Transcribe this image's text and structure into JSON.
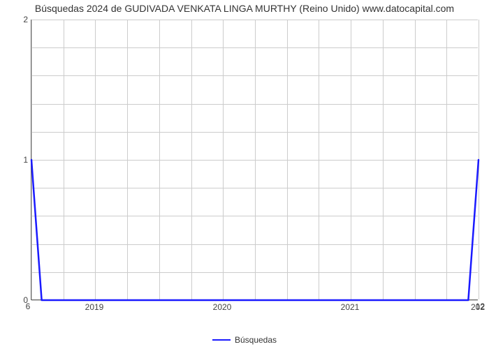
{
  "chart": {
    "type": "line",
    "title": "Búsquedas 2024 de GUDIVADA VENKATA LINGA MURTHY (Reino Unido) www.datocapital.com",
    "title_fontsize": 14,
    "title_color": "#333333",
    "background_color": "#ffffff",
    "plot_border_color": "#666666",
    "grid_color": "#cccccc",
    "y": {
      "min": 0,
      "max": 2,
      "major_ticks": [
        0,
        1,
        2
      ],
      "minor_divisions_between_majors": 4,
      "label_fontsize": 12,
      "label_color": "#444444"
    },
    "x": {
      "min": 2018.5,
      "max": 2022.0,
      "major_ticks": [
        2019,
        2020,
        2021
      ],
      "minor_step": 0.25,
      "label_fontsize": 12,
      "label_color": "#444444",
      "corner_left_label": "6",
      "corner_right_label": "12",
      "right_tick_label": "202"
    },
    "series": {
      "label": "Búsquedas",
      "color": "#1a1aff",
      "line_width": 2.5,
      "points": [
        {
          "x": 2018.5,
          "y": 1.0
        },
        {
          "x": 2018.58,
          "y": 0.0
        },
        {
          "x": 2021.92,
          "y": 0.0
        },
        {
          "x": 2022.0,
          "y": 1.0
        }
      ]
    },
    "legend": {
      "position": "bottom-center",
      "swatch_width": 26,
      "fontsize": 12
    }
  }
}
